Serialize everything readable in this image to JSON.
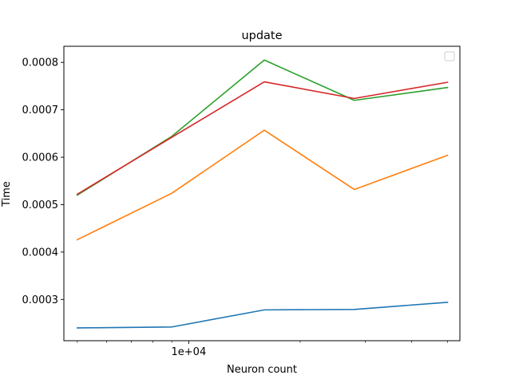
{
  "chart_data": {
    "type": "line",
    "title": "update",
    "xlabel": "Neuron count",
    "ylabel": "Time",
    "xscale": "log",
    "x": [
      5000,
      9000,
      16000,
      28000,
      50000
    ],
    "series": [
      {
        "color": "#1f77b4",
        "values": [
          0.00024,
          0.000242,
          0.000278,
          0.000279,
          0.000294
        ]
      },
      {
        "color": "#ff7f0e",
        "values": [
          0.000426,
          0.000524,
          0.000657,
          0.000532,
          0.000604
        ]
      },
      {
        "color": "#2ca02c",
        "values": [
          0.00052,
          0.000644,
          0.000805,
          0.00072,
          0.000747
        ]
      },
      {
        "color": "#d62728",
        "values": [
          0.000522,
          0.000642,
          0.000759,
          0.000724,
          0.000758
        ]
      }
    ],
    "yticks": [
      {
        "value": 0.0003,
        "label": "0.0003"
      },
      {
        "value": 0.0004,
        "label": "0.0004"
      },
      {
        "value": 0.0005,
        "label": "0.0005"
      },
      {
        "value": 0.0006,
        "label": "0.0006"
      },
      {
        "value": 0.0007,
        "label": "0.0007"
      },
      {
        "value": 0.0008,
        "label": "0.0008"
      }
    ],
    "xticks_major": [
      {
        "value": 10000,
        "label": "1e+04"
      }
    ],
    "xticks_minor": [
      5000,
      6000,
      7000,
      8000,
      9000,
      20000,
      30000,
      40000,
      50000
    ],
    "xlim": [
      4600,
      54000
    ],
    "ylim": [
      0.000213,
      0.000834
    ],
    "grid": false,
    "legend": {
      "placement": "top-right",
      "entries": []
    }
  }
}
